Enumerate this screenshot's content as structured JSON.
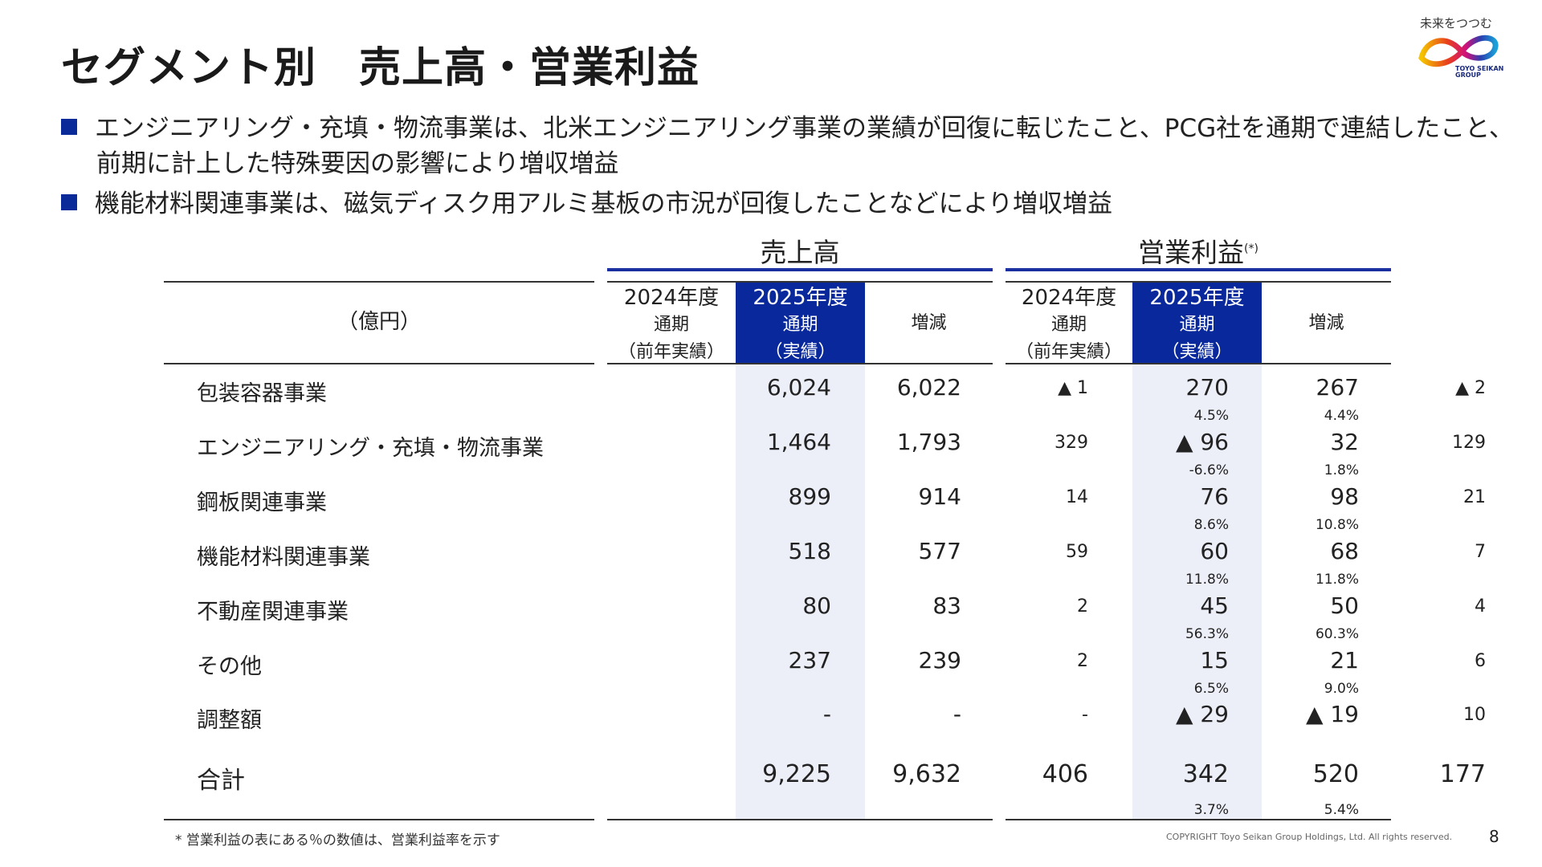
{
  "slide": {
    "title": "セグメント別　売上高・営業利益",
    "page_number": "8",
    "copyright": "COPYRIGHT Toyo Seikan Group Holdings, Ltd. All rights reserved.",
    "footnote": "* 営業利益の表にある％の数値は、営業利益率を示す"
  },
  "logo": {
    "tagline": "未来をつつむ",
    "brand_line1": "TOYO SEIKAN",
    "brand_line2": "GROUP"
  },
  "bullets": [
    {
      "line1": "エンジニアリング・充填・物流事業は、北米エンジニアリング事業の業績が回復に転じたこと、PCG社を通期で連結したこと、",
      "line2": "前期に計上した特殊要因の影響により増収増益"
    },
    {
      "line1": "機能材料関連事業は、磁気ディスク用アルミ基板の市況が回復したことなどにより増収増益"
    }
  ],
  "table": {
    "unit_label": "（億円）",
    "sales_header": "売上高",
    "profit_header": "営業利益",
    "profit_note": "(*)",
    "col_prev": {
      "l1": "2024年度",
      "l2": "通期",
      "l3": "（前年実績）"
    },
    "col_curr": {
      "l1": "2025年度",
      "l2": "通期",
      "l3": "（実績）"
    },
    "col_diff": "増減",
    "rows": [
      {
        "label": "包装容器事業",
        "s_prev": "6,024",
        "s_curr": "6,022",
        "s_diff": "▲ 1",
        "p_prev": "270",
        "p_curr": "267",
        "p_diff": "▲ 2",
        "m_prev": "4.5%",
        "m_curr": "4.4%"
      },
      {
        "label": "エンジニアリング・充填・物流事業",
        "s_prev": "1,464",
        "s_curr": "1,793",
        "s_diff": "329",
        "p_prev": "▲ 96",
        "p_curr": "32",
        "p_diff": "129",
        "m_prev": "-6.6%",
        "m_curr": "1.8%"
      },
      {
        "label": "鋼板関連事業",
        "s_prev": "899",
        "s_curr": "914",
        "s_diff": "14",
        "p_prev": "76",
        "p_curr": "98",
        "p_diff": "21",
        "m_prev": "8.6%",
        "m_curr": "10.8%"
      },
      {
        "label": "機能材料関連事業",
        "s_prev": "518",
        "s_curr": "577",
        "s_diff": "59",
        "p_prev": "60",
        "p_curr": "68",
        "p_diff": "7",
        "m_prev": "11.8%",
        "m_curr": "11.8%"
      },
      {
        "label": "不動産関連事業",
        "s_prev": "80",
        "s_curr": "83",
        "s_diff": "2",
        "p_prev": "45",
        "p_curr": "50",
        "p_diff": "4",
        "m_prev": "56.3%",
        "m_curr": "60.3%"
      },
      {
        "label": "その他",
        "s_prev": "237",
        "s_curr": "239",
        "s_diff": "2",
        "p_prev": "15",
        "p_curr": "21",
        "p_diff": "6",
        "m_prev": "6.5%",
        "m_curr": "9.0%"
      },
      {
        "label": "調整額",
        "s_prev": "-",
        "s_curr": "-",
        "s_diff": "-",
        "p_prev": "▲ 29",
        "p_curr": "▲ 19",
        "p_diff": "10",
        "m_prev": "",
        "m_curr": ""
      }
    ],
    "total": {
      "label": "合計",
      "s_prev": "9,225",
      "s_curr": "9,632",
      "s_diff": "406",
      "p_prev": "342",
      "p_curr": "520",
      "p_diff": "177",
      "m_prev": "3.7%",
      "m_curr": "5.4%"
    }
  },
  "colors": {
    "accent": "#08289c",
    "highlight": "#eceef8"
  }
}
